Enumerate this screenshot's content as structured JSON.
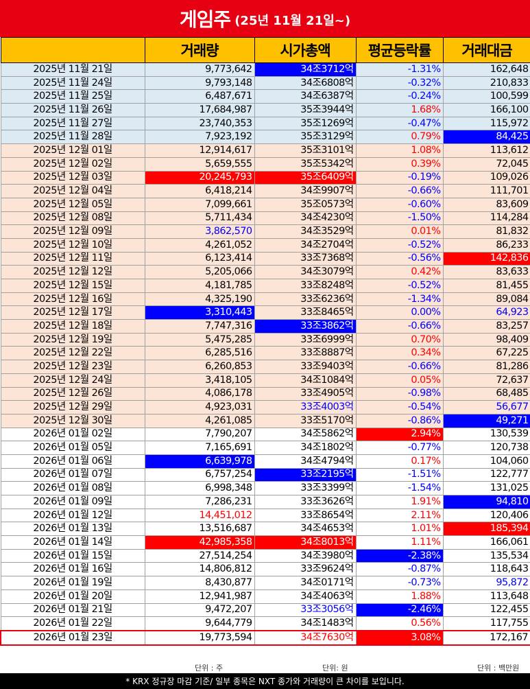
{
  "title": {
    "main": "게임주",
    "sub": "(25년 11월 21일~)"
  },
  "headers": {
    "date": "",
    "volume": "거래량",
    "mcap": "시가총액",
    "change": "평균등락률",
    "value": "거래대금"
  },
  "rows": [
    {
      "group": "blue",
      "date": "2025년 11월 21일",
      "volume": "9,773,642",
      "mcap": "34조3712억",
      "change": "-1.31%",
      "value": "162,648",
      "mcap_hl": "blue",
      "change_color": "blue"
    },
    {
      "group": "blue",
      "date": "2025년 11월 24일",
      "volume": "9,793,148",
      "mcap": "34조6808억",
      "change": "-0.32%",
      "value": "210,833",
      "change_color": "blue"
    },
    {
      "group": "blue",
      "date": "2025년 11월 25일",
      "volume": "6,487,671",
      "mcap": "34조6387억",
      "change": "-0.24%",
      "value": "100,599",
      "change_color": "blue"
    },
    {
      "group": "blue",
      "date": "2025년 11월 26일",
      "volume": "17,684,987",
      "mcap": "35조3944억",
      "change": "1.68%",
      "value": "166,100",
      "change_color": "red"
    },
    {
      "group": "blue",
      "date": "2025년 11월 27일",
      "volume": "23,740,353",
      "mcap": "35조1269억",
      "change": "-0.47%",
      "value": "115,972",
      "change_color": "blue"
    },
    {
      "group": "blue",
      "date": "2025년 11월 28일",
      "volume": "7,923,192",
      "mcap": "35조3129억",
      "change": "0.79%",
      "value": "84,425",
      "change_color": "red",
      "value_hl": "blue"
    },
    {
      "group": "peach",
      "date": "2025년 12월 01일",
      "volume": "12,914,617",
      "mcap": "35조3101억",
      "change": "1.08%",
      "value": "113,612",
      "change_color": "red"
    },
    {
      "group": "peach",
      "date": "2025년 12월 02일",
      "volume": "5,659,555",
      "mcap": "35조5342억",
      "change": "0.39%",
      "value": "72,045",
      "change_color": "red"
    },
    {
      "group": "peach",
      "date": "2025년 12월 03일",
      "volume": "20,245,793",
      "mcap": "35조6409억",
      "change": "-0.19%",
      "value": "109,026",
      "volume_hl": "red",
      "mcap_hl": "red",
      "change_color": "blue"
    },
    {
      "group": "peach",
      "date": "2025년 12월 04일",
      "volume": "6,418,214",
      "mcap": "34조9907억",
      "change": "-0.66%",
      "value": "111,701",
      "change_color": "blue"
    },
    {
      "group": "peach",
      "date": "2025년 12월 05일",
      "volume": "7,099,661",
      "mcap": "35조0573억",
      "change": "-0.60%",
      "value": "83,609",
      "change_color": "blue"
    },
    {
      "group": "peach",
      "date": "2025년 12월 08일",
      "volume": "5,711,434",
      "mcap": "34조4230억",
      "change": "-1.50%",
      "value": "114,284",
      "change_color": "blue"
    },
    {
      "group": "peach",
      "date": "2025년 12월 09일",
      "volume": "3,862,570",
      "mcap": "34조3529억",
      "change": "0.01%",
      "value": "81,832",
      "volume_color": "blue",
      "change_color": "red"
    },
    {
      "group": "peach",
      "date": "2025년 12월 10일",
      "volume": "4,261,052",
      "mcap": "34조2704억",
      "change": "-0.52%",
      "value": "86,233",
      "change_color": "blue"
    },
    {
      "group": "peach",
      "date": "2025년 12월 11일",
      "volume": "6,123,414",
      "mcap": "33조7368억",
      "change": "-0.56%",
      "value": "142,836",
      "change_color": "blue",
      "value_hl": "red"
    },
    {
      "group": "peach",
      "date": "2025년 12월 12일",
      "volume": "5,205,066",
      "mcap": "34조3079억",
      "change": "0.42%",
      "value": "83,633",
      "change_color": "red"
    },
    {
      "group": "peach",
      "date": "2025년 12월 15일",
      "volume": "4,181,785",
      "mcap": "33조8248억",
      "change": "-0.52%",
      "value": "81,455",
      "change_color": "blue"
    },
    {
      "group": "peach",
      "date": "2025년 12월 16일",
      "volume": "4,325,190",
      "mcap": "33조6236억",
      "change": "-1.34%",
      "value": "89,084",
      "change_color": "blue"
    },
    {
      "group": "peach",
      "date": "2025년 12월 17일",
      "volume": "3,310,443",
      "mcap": "33조8465억",
      "change": "0.00%",
      "value": "64,923",
      "volume_hl": "blue",
      "change_color": "blue",
      "value_color": "blue"
    },
    {
      "group": "peach",
      "date": "2025년 12월 18일",
      "volume": "7,747,316",
      "mcap": "33조3862억",
      "change": "-0.66%",
      "value": "83,257",
      "mcap_hl": "blue",
      "change_color": "blue"
    },
    {
      "group": "peach",
      "date": "2025년 12월 19일",
      "volume": "5,475,285",
      "mcap": "33조6999억",
      "change": "0.70%",
      "value": "98,409",
      "change_color": "red"
    },
    {
      "group": "peach",
      "date": "2025년 12월 22일",
      "volume": "6,285,516",
      "mcap": "33조8887억",
      "change": "0.34%",
      "value": "67,225",
      "change_color": "red"
    },
    {
      "group": "peach",
      "date": "2025년 12월 23일",
      "volume": "6,260,853",
      "mcap": "33조9403억",
      "change": "-0.66%",
      "value": "81,286",
      "change_color": "blue"
    },
    {
      "group": "peach",
      "date": "2025년 12월 24일",
      "volume": "3,418,105",
      "mcap": "34조1084억",
      "change": "0.05%",
      "value": "72,637",
      "change_color": "red"
    },
    {
      "group": "peach",
      "date": "2025년 12월 26일",
      "volume": "4,086,178",
      "mcap": "33조4905억",
      "change": "-0.98%",
      "value": "68,485",
      "change_color": "blue"
    },
    {
      "group": "peach",
      "date": "2025년 12월 29일",
      "volume": "4,923,031",
      "mcap": "33조4003억",
      "change": "-0.54%",
      "value": "56,677",
      "mcap_color": "blue",
      "change_color": "blue",
      "value_color": "blue"
    },
    {
      "group": "peach",
      "date": "2025년 12월 30일",
      "volume": "4,261,085",
      "mcap": "33조5170억",
      "change": "-0.86%",
      "value": "49,271",
      "change_color": "blue",
      "value_hl": "blue"
    },
    {
      "group": "white",
      "date": "2026년 01월 02일",
      "volume": "7,790,207",
      "mcap": "34조5862억",
      "change": "2.94%",
      "value": "130,539",
      "change_hl": "red"
    },
    {
      "group": "white",
      "date": "2026년 01월 05일",
      "volume": "7,165,691",
      "mcap": "34조1802억",
      "change": "-0.77%",
      "value": "120,738",
      "change_color": "blue"
    },
    {
      "group": "white",
      "date": "2026년 01월 06일",
      "volume": "6,639,978",
      "mcap": "34조4794억",
      "change": "0.17%",
      "value": "104,060",
      "volume_hl": "blue",
      "change_color": "red"
    },
    {
      "group": "white",
      "date": "2026년 01월 07일",
      "volume": "6,757,254",
      "mcap": "33조2195억",
      "change": "-1.51%",
      "value": "122,777",
      "mcap_hl": "blue",
      "change_color": "blue"
    },
    {
      "group": "white",
      "date": "2026년 01월 08일",
      "volume": "6,998,348",
      "mcap": "33조3399억",
      "change": "-1.54%",
      "value": "131,025",
      "change_color": "blue"
    },
    {
      "group": "white",
      "date": "2026년 01월 09일",
      "volume": "7,286,231",
      "mcap": "33조3626억",
      "change": "1.91%",
      "value": "94,810",
      "change_color": "red",
      "value_hl": "blue"
    },
    {
      "group": "white",
      "date": "2026년 01월 12일",
      "volume": "14,451,012",
      "mcap": "33조8654억",
      "change": "2.11%",
      "value": "120,406",
      "volume_color": "red",
      "change_color": "red"
    },
    {
      "group": "white",
      "date": "2026년 01월 13일",
      "volume": "13,516,687",
      "mcap": "34조4653억",
      "change": "1.01%",
      "value": "185,394",
      "change_color": "red",
      "value_hl": "red"
    },
    {
      "group": "white",
      "date": "2026년 01월 14일",
      "volume": "42,985,358",
      "mcap": "34조8013억",
      "change": "1.11%",
      "value": "166,061",
      "volume_hl": "red",
      "mcap_hl": "red",
      "change_color": "red"
    },
    {
      "group": "white",
      "date": "2026년 01월 15일",
      "volume": "27,514,254",
      "mcap": "34조3980억",
      "change": "-2.38%",
      "value": "135,534",
      "change_hl": "blue"
    },
    {
      "group": "white",
      "date": "2026년 01월 16일",
      "volume": "14,806,812",
      "mcap": "33조9624억",
      "change": "-0.87%",
      "value": "118,643",
      "change_color": "blue"
    },
    {
      "group": "white",
      "date": "2026년 01월 19일",
      "volume": "8,430,877",
      "mcap": "34조0171억",
      "change": "-0.73%",
      "value": "95,872",
      "change_color": "blue",
      "value_color": "blue"
    },
    {
      "group": "white",
      "date": "2026년 01월 20일",
      "volume": "12,941,987",
      "mcap": "34조4063억",
      "change": "1.88%",
      "value": "113,648",
      "change_color": "red"
    },
    {
      "group": "white",
      "date": "2026년 01월 21일",
      "volume": "9,472,207",
      "mcap": "33조3056억",
      "change": "-2.46%",
      "value": "122,455",
      "mcap_color": "blue",
      "change_hl": "blue"
    },
    {
      "group": "white",
      "date": "2026년 01월 22일",
      "volume": "9,644,779",
      "mcap": "34조1483억",
      "change": "0.56%",
      "value": "117,755",
      "change_color": "red"
    },
    {
      "group": "white",
      "date": "2026년 01월 23일",
      "volume": "19,773,594",
      "mcap": "34조7630억",
      "change": "3.08%",
      "value": "172,167",
      "mcap_color": "red",
      "change_hl": "red",
      "last": true
    }
  ],
  "units": {
    "volume": "단위 : 주",
    "mcap": "단위: 원",
    "value": "단위 : 백만원"
  },
  "footer": "* KRX 정규장 마감 기준/ 일부 종목은 NXT 종가와 거래량이 큰 차이를 보입니다."
}
